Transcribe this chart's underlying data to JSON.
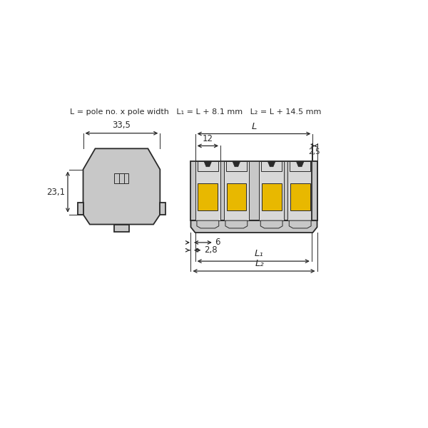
{
  "bg_color": "#ffffff",
  "line_color": "#2a2a2a",
  "gray_fill": "#c8c8c8",
  "gray_light": "#d8d8d8",
  "yellow_fill": "#e8b800",
  "formula_text": "L = pole no. x pole width   L₁ = L + 8.1 mm   L₂ = L + 14.5 mm",
  "dim_33_5": "33,5",
  "dim_23_1": "23,1",
  "dim_12": "12",
  "dim_2_5": "2,5",
  "dim_6": "6",
  "dim_2_8": "2,8",
  "dim_L": "L",
  "dim_L1": "L₁",
  "dim_L2": "L₂"
}
